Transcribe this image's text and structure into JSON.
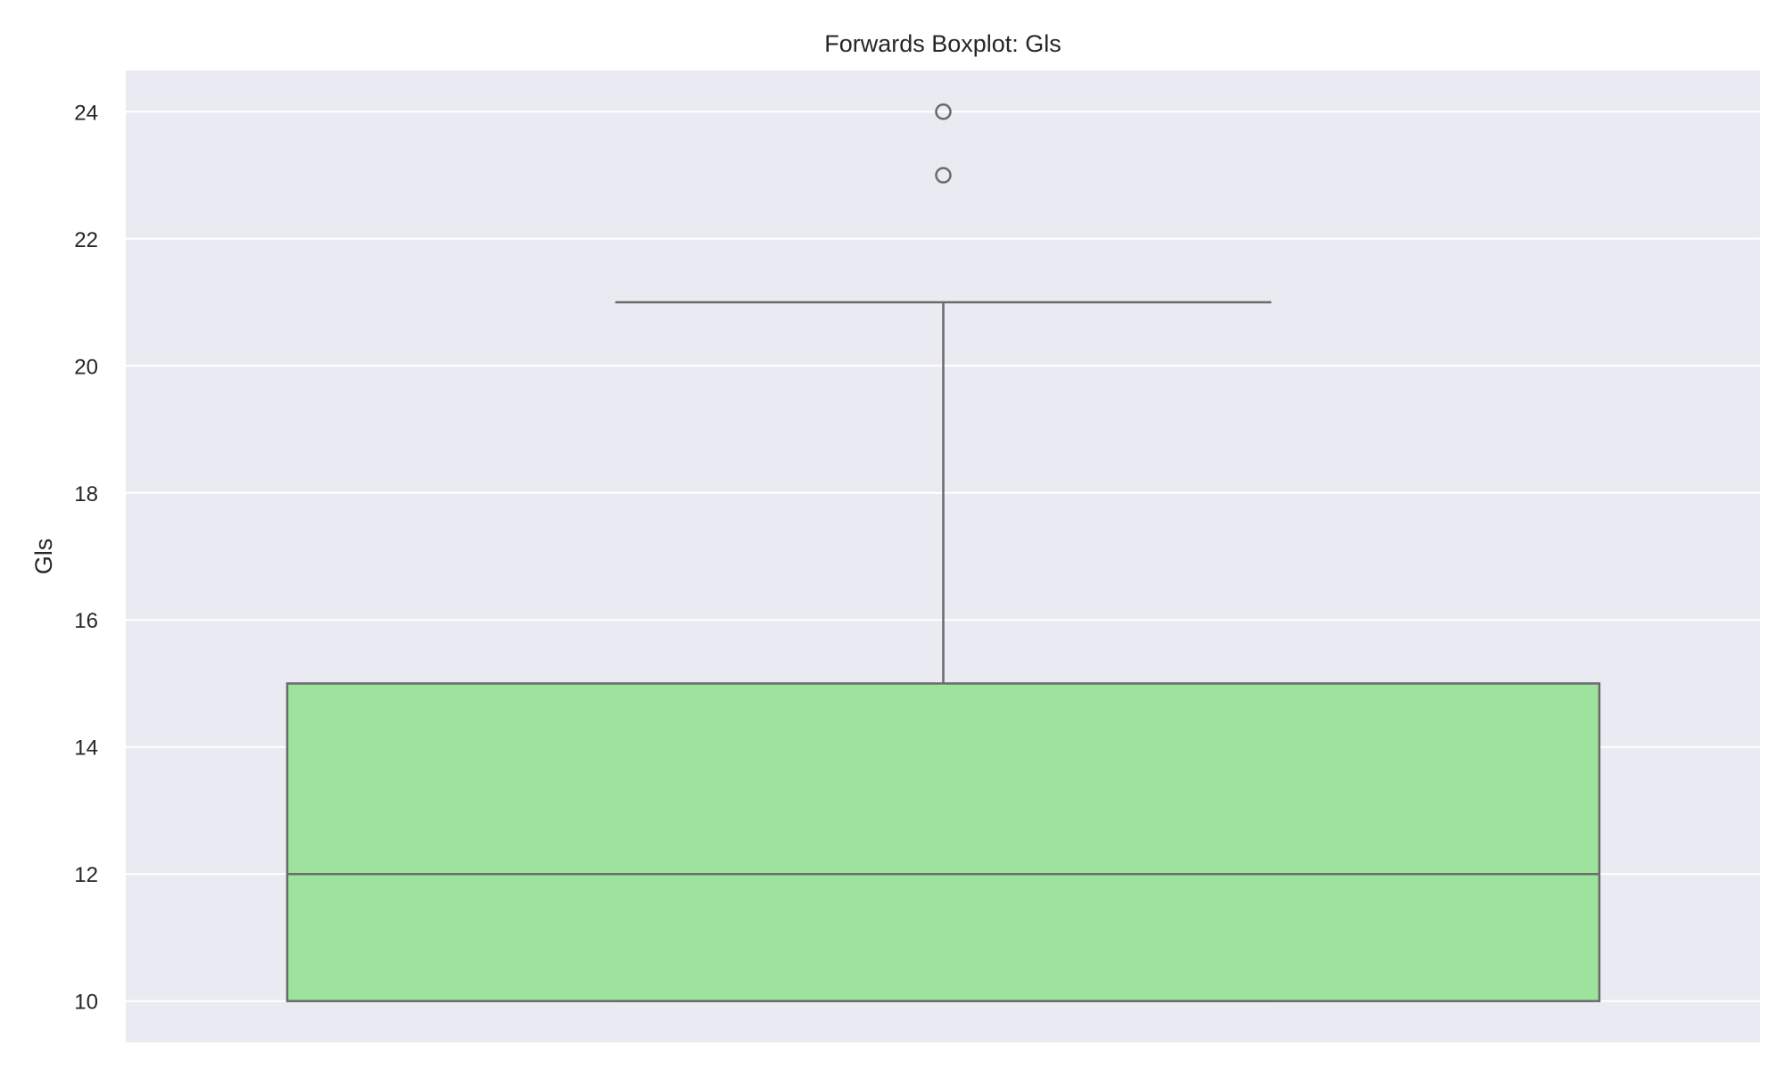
{
  "chart_data": {
    "type": "boxplot",
    "title": "Forwards Boxplot: Gls",
    "xlabel": "",
    "ylabel": "Gls",
    "ylim": [
      9.35,
      24.65
    ],
    "yticks": [
      10,
      12,
      14,
      16,
      18,
      20,
      22,
      24
    ],
    "grid": true,
    "box": {
      "whisker_low": 10,
      "q1": 10,
      "median": 12,
      "q3": 15,
      "whisker_high": 21,
      "outliers": [
        23,
        24
      ]
    },
    "colors": {
      "background": "#eaeaf2",
      "grid": "#ffffff",
      "box_fill": "#9de29d",
      "line": "#6b6b6b"
    }
  }
}
